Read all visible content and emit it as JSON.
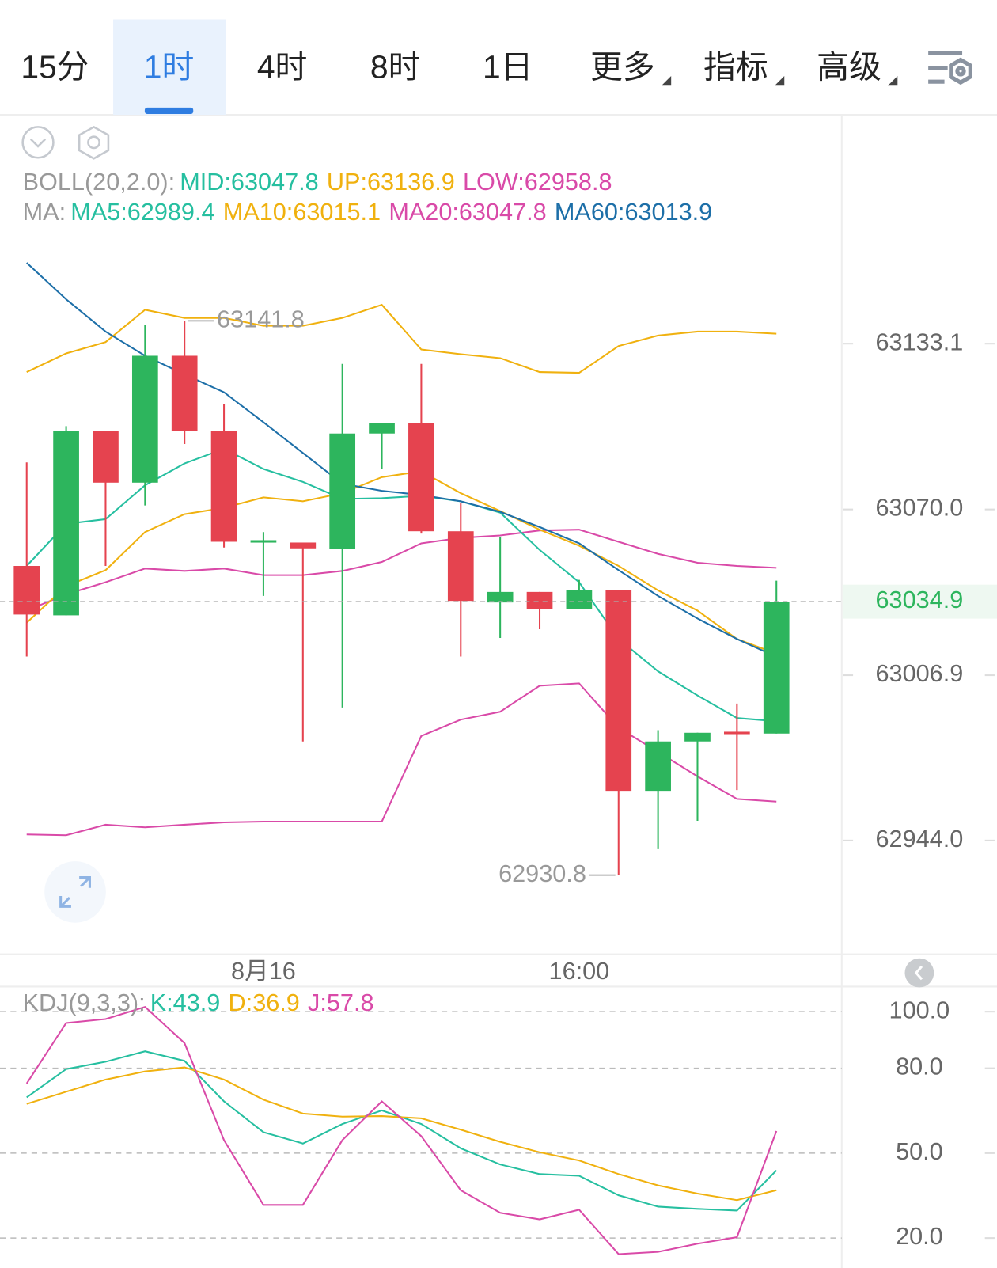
{
  "tabs": [
    {
      "label": "15分"
    },
    {
      "label": "1时",
      "selected": true
    },
    {
      "label": "4时"
    },
    {
      "label": "8时"
    },
    {
      "label": "1日"
    },
    {
      "label": "更多",
      "dropdown": true
    },
    {
      "label": "指标",
      "dropdown": true
    },
    {
      "label": "高级",
      "dropdown": true
    }
  ],
  "chart_data": [
    {
      "type": "candlestick",
      "legend_rows": [
        {
          "label": "BOLL(20,2.0):",
          "items": [
            {
              "text": "MID:63047.8",
              "color": "#26bfa0"
            },
            {
              "text": "UP:63136.9",
              "color": "#f0b10f"
            },
            {
              "text": "LOW:62958.8",
              "color": "#d94aa8"
            }
          ]
        },
        {
          "label": "MA:",
          "items": [
            {
              "text": "MA5:62989.4",
              "color": "#26bfa0"
            },
            {
              "text": "MA10:63015.1",
              "color": "#f0b10f"
            },
            {
              "text": "MA20:63047.8",
              "color": "#d94aa8"
            },
            {
              "text": "MA60:63013.9",
              "color": "#1d6fa8"
            }
          ]
        }
      ],
      "categories": [
        null,
        null,
        null,
        null,
        null,
        null,
        "8月16",
        null,
        null,
        null,
        null,
        null,
        null,
        null,
        "16:00",
        null,
        null,
        null,
        null,
        null
      ],
      "open": [
        63048.5,
        63029.7,
        63099.9,
        63080.2,
        63128.5,
        63099.9,
        63057.4,
        63057.4,
        63054.9,
        63098.9,
        63102.9,
        63061.7,
        63034.6,
        63038.6,
        63032.1,
        63039.2,
        62962.9,
        62981.7,
        62985.4,
        62984.7
      ],
      "high": [
        63087.9,
        63101.7,
        63099.9,
        63140.2,
        63141.8,
        63110.0,
        63061.4,
        63057.4,
        63125.4,
        63102.9,
        63125.4,
        63072.5,
        63059.5,
        63038.6,
        63043.2,
        63039.2,
        62986.0,
        62985.0,
        62996.1,
        63042.9
      ],
      "low": [
        63014.0,
        63029.7,
        63048.5,
        63071.5,
        63094.9,
        63055.5,
        63037.1,
        62981.7,
        62994.6,
        63085.4,
        63060.8,
        63014.0,
        63021.1,
        63024.4,
        63032.1,
        62930.8,
        62940.7,
        62951.5,
        62963.2,
        62984.7
      ],
      "close": [
        63030.0,
        63099.9,
        63080.2,
        63128.5,
        63099.9,
        63057.7,
        63058.3,
        63055.2,
        63098.9,
        63102.9,
        63061.7,
        63035.2,
        63038.6,
        63032.1,
        63039.2,
        62962.9,
        62981.7,
        62985.0,
        62984.7,
        63034.9
      ],
      "up_color": "#2db55d",
      "down_color": "#e5434f",
      "series": [
        {
          "color": "#f0b10f",
          "values": [
            63122.3,
            63129.4,
            63133.7,
            63146.0,
            63142.9,
            63142.9,
            63139.9,
            63139.9,
            63142.9,
            63147.9,
            63130.9,
            63129.1,
            63127.6,
            63122.3,
            63122.0,
            63132.2,
            63136.2,
            63137.7,
            63137.7,
            63136.9
          ]
        },
        {
          "color": "#d94aa8",
          "values": [
            63031.5,
            63037.7,
            63042.3,
            63047.5,
            63046.6,
            63047.5,
            63045.0,
            63045.0,
            63046.6,
            63050.0,
            63057.1,
            63059.2,
            63060.1,
            63062.0,
            63062.3,
            63057.7,
            63053.1,
            63049.7,
            63048.5,
            63047.8
          ]
        },
        {
          "color": "#d94aa8",
          "values": [
            62946.3,
            62946.0,
            62950.0,
            62949.0,
            62950.0,
            62950.9,
            62951.2,
            62951.2,
            62951.2,
            62951.2,
            62983.8,
            62990.0,
            62993.0,
            63002.9,
            63003.8,
            62986.9,
            62977.7,
            62968.4,
            62959.8,
            62958.8
          ]
        },
        {
          "color": "#26bfa0",
          "values": [
            63048.5,
            63064.5,
            63066.3,
            63079.2,
            63087.5,
            63093.1,
            63085.4,
            63080.5,
            63074.0,
            63074.3,
            63075.2,
            63073.1,
            63068.8,
            63054.6,
            63042.3,
            63020.7,
            63008.4,
            62999.2,
            62990.6,
            62989.4
          ]
        },
        {
          "color": "#f0b10f",
          "values": [
            63026.9,
            63040.8,
            63046.9,
            63061.4,
            63068.2,
            63070.6,
            63074.6,
            63073.1,
            63076.2,
            63082.3,
            63084.5,
            63076.2,
            63069.4,
            63062.3,
            63056.2,
            63048.5,
            63039.2,
            63031.5,
            63020.7,
            63015.1
          ]
        },
        {
          "color": "#1d6fa8",
          "values": [
            63163.9,
            63150.0,
            63137.7,
            63128.5,
            63121.4,
            63114.6,
            63103.2,
            63091.5,
            63079.8,
            63077.1,
            63075.5,
            63073.1,
            63069.1,
            63063.3,
            63057.1,
            63046.9,
            63037.1,
            63028.5,
            63020.7,
            63013.9
          ]
        }
      ],
      "ylim": [
        62900.7,
        63219.9
      ],
      "yticks": [
        {
          "value": 62944,
          "label": "62944.0"
        },
        63006.9,
        {
          "value": 63070,
          "label": "63070.0"
        },
        63133.1
      ]
    },
    {
      "type": "line",
      "legend_rows": [
        {
          "label": "KDJ(9,3,3):",
          "items": [
            {
              "text": "K:43.9",
              "color": "#26bfa0"
            },
            {
              "text": "D:36.9",
              "color": "#f0b10f"
            },
            {
              "text": "J:57.8",
              "color": "#d94aa8"
            }
          ]
        }
      ],
      "series": [
        {
          "color": "#26bfa0",
          "values": [
            69.7,
            79.7,
            82.3,
            86.0,
            82.6,
            68.3,
            57.4,
            53.4,
            60.3,
            65.1,
            60.3,
            51.7,
            46.0,
            42.6,
            42.0,
            35.1,
            31.1,
            30.3,
            29.7,
            43.9
          ]
        },
        {
          "color": "#f0b10f",
          "values": [
            67.4,
            71.7,
            76.0,
            78.9,
            80.3,
            76.0,
            68.9,
            64.0,
            62.9,
            63.1,
            62.3,
            58.3,
            54.0,
            50.3,
            47.4,
            42.6,
            38.6,
            35.7,
            33.4,
            36.9
          ]
        },
        {
          "color": "#d94aa8",
          "values": [
            74.6,
            96.0,
            97.4,
            101.7,
            88.9,
            54.6,
            31.7,
            31.7,
            54.6,
            68.3,
            56.0,
            36.9,
            28.9,
            26.6,
            30.0,
            14.3,
            15.1,
            18.0,
            20.3,
            57.8
          ]
        }
      ],
      "ylim": [
        9.4,
        108.3
      ],
      "yticks": [
        {
          "value": 20,
          "label": "20.0"
        },
        {
          "value": 50,
          "label": "50.0"
        },
        {
          "value": 80,
          "label": "80.0"
        },
        {
          "value": 100,
          "label": "100.0"
        }
      ],
      "grid": true
    }
  ]
}
